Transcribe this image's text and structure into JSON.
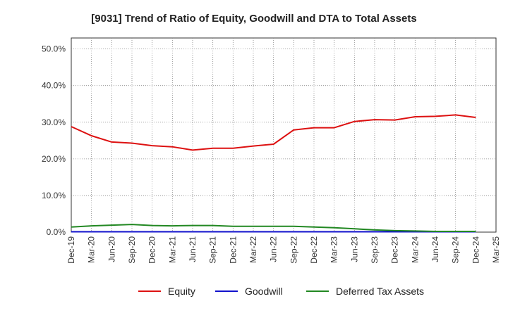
{
  "chart_data": {
    "type": "line",
    "title": "[9031]  Trend of Ratio of Equity, Goodwill and DTA to Total Assets",
    "xlabel": "",
    "ylabel": "",
    "ylim": [
      0,
      53
    ],
    "yticks": [
      0,
      10,
      20,
      30,
      40,
      50
    ],
    "ytick_labels": [
      "0.0%",
      "10.0%",
      "20.0%",
      "30.0%",
      "40.0%",
      "50.0%"
    ],
    "grid": true,
    "legend_position": "bottom",
    "categories": [
      "Dec-19",
      "Mar-20",
      "Jun-20",
      "Sep-20",
      "Dec-20",
      "Mar-21",
      "Jun-21",
      "Sep-21",
      "Dec-21",
      "Mar-22",
      "Jun-22",
      "Sep-22",
      "Dec-22",
      "Mar-23",
      "Jun-23",
      "Sep-23",
      "Dec-23",
      "Mar-24",
      "Jun-24",
      "Sep-24",
      "Dec-24",
      "Mar-25"
    ],
    "series": [
      {
        "name": "Equity",
        "color": "#dd1111",
        "values": [
          28.8,
          26.3,
          24.6,
          24.3,
          23.6,
          23.3,
          22.4,
          22.9,
          22.9,
          23.5,
          24.0,
          27.9,
          28.5,
          28.5,
          30.2,
          30.7,
          30.6,
          31.5,
          31.6,
          32.0,
          31.3,
          null
        ]
      },
      {
        "name": "Goodwill",
        "color": "#1111cc",
        "values": [
          0.1,
          0.1,
          0.1,
          0.1,
          0.1,
          0.1,
          0.1,
          0.1,
          0.1,
          0.1,
          0.1,
          0.1,
          0.1,
          0.1,
          0.1,
          0.1,
          0.1,
          0.1,
          0.1,
          0.1,
          0.1,
          null
        ]
      },
      {
        "name": "Deferred Tax Assets",
        "color": "#228822",
        "values": [
          1.4,
          1.7,
          1.9,
          2.1,
          1.8,
          1.7,
          1.8,
          1.8,
          1.6,
          1.6,
          1.6,
          1.6,
          1.4,
          1.2,
          0.9,
          0.6,
          0.4,
          0.3,
          0.2,
          0.2,
          0.2,
          null
        ]
      }
    ]
  }
}
